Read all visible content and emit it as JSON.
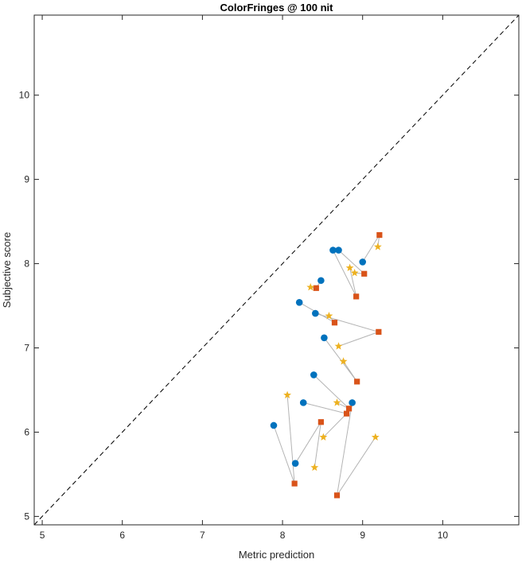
{
  "chart_data": {
    "type": "scatter",
    "title": "ColorFringes @ 100 nit",
    "xlabel": "Metric prediction",
    "ylabel": "Subjective score",
    "xlim": [
      4.9,
      10.95
    ],
    "ylim": [
      4.9,
      10.95
    ],
    "xticks": [
      5,
      6,
      7,
      8,
      9,
      10
    ],
    "yticks": [
      5,
      6,
      7,
      8,
      9,
      10
    ],
    "grid": false,
    "legend": "none",
    "reference_line": {
      "style": "dashed",
      "color": "#000000",
      "from": [
        4.9,
        4.9
      ],
      "to": [
        10.95,
        10.95
      ]
    },
    "connector_color": "#b4b4b4",
    "series": [
      {
        "marker": "circle",
        "color": "#0072bd",
        "points": [
          [
            7.89,
            6.08
          ],
          [
            8.16,
            5.63
          ],
          [
            8.26,
            6.35
          ],
          [
            8.39,
            6.68
          ],
          [
            8.52,
            7.12
          ],
          [
            8.41,
            7.41
          ],
          [
            8.21,
            7.54
          ],
          [
            8.48,
            7.8
          ],
          [
            8.63,
            8.16
          ],
          [
            8.7,
            8.16
          ],
          [
            9.0,
            8.02
          ],
          [
            8.87,
            6.35
          ]
        ]
      },
      {
        "marker": "square",
        "color": "#d95319",
        "points": [
          [
            8.15,
            5.39
          ],
          [
            8.48,
            6.12
          ],
          [
            8.8,
            6.22
          ],
          [
            8.83,
            6.28
          ],
          [
            8.93,
            6.6
          ],
          [
            9.2,
            7.19
          ],
          [
            8.65,
            7.3
          ],
          [
            8.42,
            7.71
          ],
          [
            8.92,
            7.61
          ],
          [
            9.02,
            7.88
          ],
          [
            9.21,
            8.34
          ],
          [
            8.68,
            5.25
          ]
        ]
      },
      {
        "marker": "star",
        "color": "#edb120",
        "points": [
          [
            8.06,
            6.44
          ],
          [
            8.4,
            5.58
          ],
          [
            8.51,
            5.94
          ],
          [
            8.68,
            6.35
          ],
          [
            8.76,
            6.84
          ],
          [
            8.7,
            7.02
          ],
          [
            8.58,
            7.38
          ],
          [
            8.35,
            7.72
          ],
          [
            8.84,
            7.95
          ],
          [
            8.9,
            7.89
          ],
          [
            9.19,
            8.2
          ],
          [
            9.16,
            5.94
          ]
        ]
      }
    ]
  }
}
